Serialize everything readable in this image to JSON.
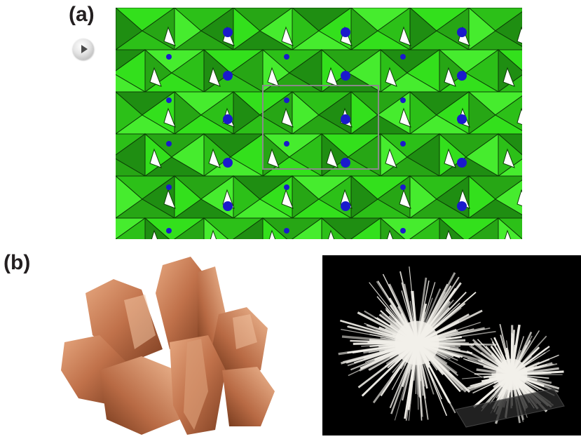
{
  "panel_a": {
    "label": "(a)",
    "play_icon": "play-icon"
  },
  "panel_b": {
    "label": "(b)"
  },
  "colors": {
    "polyhedra_light": "#33e01c",
    "polyhedra_mid": "#2cc018",
    "polyhedra_dark": "#1f8e12",
    "atoms": "#1a1acc",
    "unit_cell": "#8a8a8a",
    "aragonite": "#c0714a",
    "needle_crystals": "#f2f0ea"
  }
}
